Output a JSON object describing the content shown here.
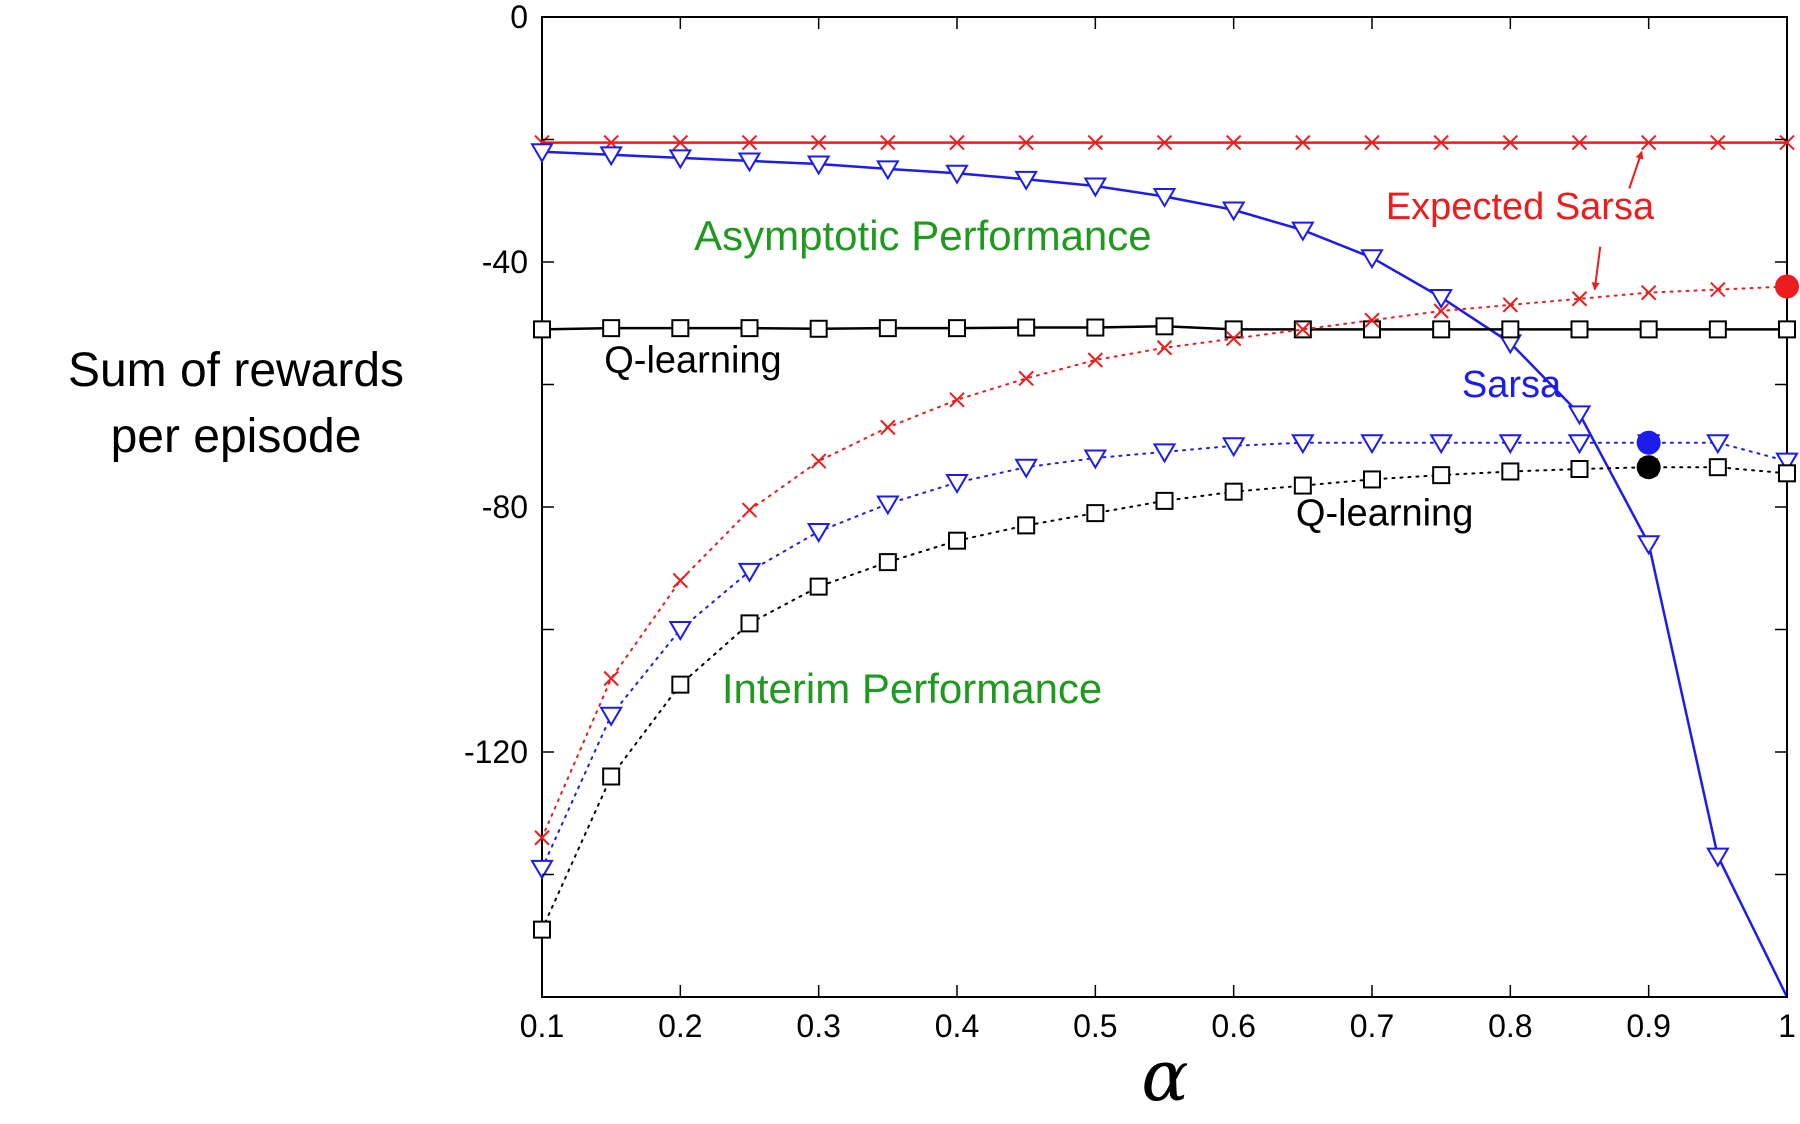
{
  "chart_data": {
    "type": "line",
    "xlabel": "α",
    "ylabel_lines": [
      "Sum of rewards",
      "per episode"
    ],
    "xlim": [
      0.1,
      1.0
    ],
    "ylim": [
      -160,
      0
    ],
    "x_ticks": [
      "0.1",
      "0.2",
      "0.3",
      "0.4",
      "0.5",
      "0.6",
      "0.7",
      "0.8",
      "0.9",
      "1"
    ],
    "y_ticks": [
      "0",
      "-40",
      "-80",
      "-120"
    ],
    "x": [
      0.1,
      0.15,
      0.2,
      0.25,
      0.3,
      0.35,
      0.4,
      0.45,
      0.5,
      0.55,
      0.6,
      0.65,
      0.7,
      0.75,
      0.8,
      0.85,
      0.9,
      0.95,
      1.0
    ],
    "series": [
      {
        "name": "Expected Sarsa (asymptotic)",
        "group": "asymptotic",
        "color": "#ee1c1c",
        "style": "solid",
        "marker": "x",
        "values": [
          -20.5,
          -20.5,
          -20.5,
          -20.5,
          -20.5,
          -20.5,
          -20.5,
          -20.5,
          -20.5,
          -20.5,
          -20.5,
          -20.5,
          -20.5,
          -20.5,
          -20.5,
          -20.5,
          -20.5,
          -20.5,
          -20.5
        ]
      },
      {
        "name": "Sarsa (asymptotic)",
        "group": "asymptotic",
        "color": "#1c1cee",
        "style": "solid",
        "marker": "triangle-down",
        "values": [
          -22,
          -22.5,
          -23,
          -23.5,
          -24,
          -24.8,
          -25.5,
          -26.5,
          -27.6,
          -29.3,
          -31.5,
          -34.8,
          -39.3,
          -45.8,
          -53.2,
          -64.8,
          -86,
          -137,
          -160
        ]
      },
      {
        "name": "Q-learning (asymptotic)",
        "group": "asymptotic",
        "color": "#000000",
        "style": "solid",
        "marker": "square",
        "values": [
          -51,
          -50.8,
          -50.8,
          -50.8,
          -50.9,
          -50.8,
          -50.8,
          -50.7,
          -50.7,
          -50.5,
          -51,
          -51,
          -51,
          -51,
          -51,
          -51,
          -51,
          -51,
          -51
        ]
      },
      {
        "name": "Expected Sarsa (interim)",
        "group": "interim",
        "color": "#ee1c1c",
        "style": "dotted",
        "marker": "x",
        "values": [
          -134,
          -108,
          -92,
          -80.5,
          -72.5,
          -67,
          -62.5,
          -59,
          -56,
          -54,
          -52.5,
          -51,
          -49.5,
          -48,
          -47,
          -46,
          -45,
          -44.5,
          -44
        ]
      },
      {
        "name": "Sarsa (interim)",
        "group": "interim",
        "color": "#1c1cee",
        "style": "dotted",
        "marker": "triangle-down",
        "values": [
          -139,
          -114,
          -100,
          -90.5,
          -84,
          -79.5,
          -76,
          -73.5,
          -72,
          -71,
          -70,
          -69.5,
          -69.5,
          -69.5,
          -69.5,
          -69.5,
          -69.5,
          -69.5,
          -72.5
        ]
      },
      {
        "name": "Q-learning (interim)",
        "group": "interim",
        "color": "#000000",
        "style": "dotted",
        "marker": "square",
        "values": [
          -149,
          -124,
          -109,
          -99,
          -93,
          -89,
          -85.5,
          -83,
          -81,
          -79,
          -77.5,
          -76.5,
          -75.5,
          -74.8,
          -74.2,
          -73.8,
          -73.5,
          -73.5,
          -74.5
        ]
      }
    ],
    "highlight_points": [
      {
        "name": "Expected Sarsa best",
        "x": 1.0,
        "y": -44,
        "color": "#ee1c1c"
      },
      {
        "name": "Sarsa best",
        "x": 0.9,
        "y": -69.5,
        "color": "#1c1cee"
      },
      {
        "name": "Q-learning best",
        "x": 0.9,
        "y": -73.5,
        "color": "#000000"
      }
    ],
    "annotations": [
      {
        "text": "Asymptotic Performance",
        "color": "#1f9a1f",
        "x": 0.21,
        "y": -38
      },
      {
        "text": "Interim Performance",
        "color": "#1f9a1f",
        "x": 0.23,
        "y": -112
      },
      {
        "text": "Expected Sarsa",
        "color": "#ee1c1c",
        "x": 0.71,
        "y": -33
      },
      {
        "text": "Q-learning",
        "color": "#000000",
        "x": 0.145,
        "y": -58
      },
      {
        "text": "Sarsa",
        "color": "#1c1cee",
        "x": 0.765,
        "y": -62
      },
      {
        "text": "Q-learning",
        "color": "#000000",
        "x": 0.645,
        "y": -83
      }
    ],
    "arrows": [
      {
        "from": [
          0.886,
          -28
        ],
        "to": [
          0.895,
          -22
        ]
      },
      {
        "from": [
          0.865,
          -37.5
        ],
        "to": [
          0.861,
          -44.5
        ]
      }
    ]
  }
}
